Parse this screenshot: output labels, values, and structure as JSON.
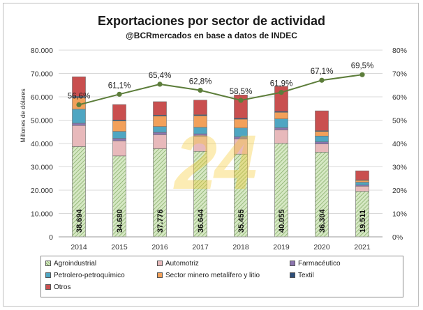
{
  "chart_data": {
    "type": "bar",
    "stacked": true,
    "title": "Exportaciones por sector de actividad",
    "subtitle": "@BCRmercados en base a datos de INDEC",
    "ylabel": "Millones de dólares",
    "ylim": [
      0,
      80000
    ],
    "y2lim": [
      0,
      0.8
    ],
    "y_ticks": [
      "0",
      "10.000",
      "20.000",
      "30.000",
      "40.000",
      "50.000",
      "60.000",
      "70.000",
      "80.000"
    ],
    "y2_ticks": [
      "0%",
      "10%",
      "20%",
      "30%",
      "40%",
      "50%",
      "60%",
      "70%",
      "80%"
    ],
    "categories": [
      "2014",
      "2015",
      "2016",
      "2017",
      "2018",
      "2019",
      "2020",
      "2021"
    ],
    "series": [
      {
        "name": "Agroindustrial",
        "color": "#c5ddb0",
        "pattern": "hatch",
        "values": [
          38694,
          34680,
          37776,
          36644,
          35455,
          40055,
          36304,
          19511
        ]
      },
      {
        "name": "Automotriz",
        "color": "#e8b9bb",
        "values": [
          9000,
          6500,
          6000,
          6500,
          6500,
          5800,
          3500,
          2200
        ]
      },
      {
        "name": "Farmacéutico",
        "color": "#8d75b0",
        "values": [
          1000,
          1000,
          1000,
          1000,
          900,
          900,
          900,
          500
        ]
      },
      {
        "name": "Petrolero-petroquímico",
        "color": "#4fa6c2",
        "values": [
          6000,
          3000,
          2500,
          2800,
          3800,
          3800,
          2500,
          1200
        ]
      },
      {
        "name": "Sector minero metalífero y litio",
        "color": "#f2a05a",
        "values": [
          5000,
          4500,
          4500,
          5000,
          3800,
          2800,
          2000,
          800
        ]
      },
      {
        "name": "Textil",
        "color": "#2f4f7a",
        "values": [
          500,
          400,
          400,
          400,
          400,
          400,
          300,
          200
        ]
      },
      {
        "name": "Otros",
        "color": "#c94f4f",
        "values": [
          8406,
          6620,
          5748,
          6256,
          9945,
          10745,
          8496,
          3889
        ]
      }
    ],
    "line": {
      "color": "#5c7d3a",
      "values": [
        0.566,
        0.611,
        0.654,
        0.628,
        0.585,
        0.619,
        0.671,
        0.695
      ],
      "labels": [
        "56,6%",
        "61,1%",
        "65,4%",
        "62,8%",
        "58,5%",
        "61,9%",
        "67,1%",
        "69,5%"
      ]
    },
    "bar_labels": [
      "38.694",
      "34.680",
      "37.776",
      "36.644",
      "35.455",
      "40.055",
      "36.304",
      "19.511"
    ],
    "legend_position": "bottom"
  },
  "watermark": "24"
}
